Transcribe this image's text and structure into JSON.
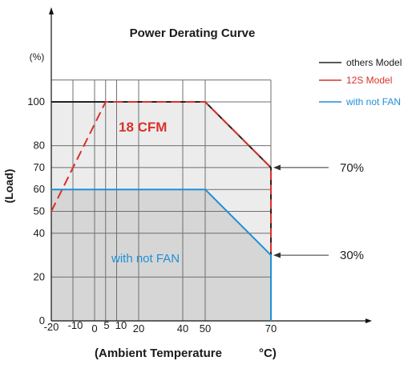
{
  "chart_data": {
    "type": "line",
    "title": "Power Derating Curve",
    "xlabel": "(Ambient Temperature",
    "xlabel_unit": "°C)",
    "ylabel": "(Load)",
    "y_unit_label": "(%)",
    "xlim": [
      -20,
      70
    ],
    "ylim": [
      0,
      110
    ],
    "x_ticks": [
      {
        "label": "-20",
        "value": -20
      },
      {
        "label": "-10",
        "value": -10
      },
      {
        "label": "0",
        "value": 0
      },
      {
        "label": "5",
        "value": 5
      },
      {
        "label": "10",
        "value": 10
      },
      {
        "label": "20",
        "value": 20
      },
      {
        "label": "40",
        "value": 40
      },
      {
        "label": "50",
        "value": 50
      },
      {
        "label": "70",
        "value": 70
      }
    ],
    "y_ticks": [
      {
        "label": "0",
        "value": 0
      },
      {
        "label": "20",
        "value": 20
      },
      {
        "label": "40",
        "value": 40
      },
      {
        "label": "50",
        "value": 50
      },
      {
        "label": "60",
        "value": 60
      },
      {
        "label": "70",
        "value": 70
      },
      {
        "label": "80",
        "value": 80
      },
      {
        "label": "100",
        "value": 100
      }
    ],
    "grid": true,
    "legend_position": "top-right",
    "series": [
      {
        "name": "others Model",
        "color": "#222222",
        "style": "solid",
        "x": [
          -20,
          50,
          70,
          70
        ],
        "y": [
          100,
          100,
          70,
          0
        ]
      },
      {
        "name": "12S Model",
        "color": "#d9322a",
        "style": "dashed",
        "x": [
          -20,
          5,
          50,
          70,
          70
        ],
        "y": [
          50,
          100,
          100,
          70,
          0
        ]
      },
      {
        "name": "with not FAN",
        "color": "#1e90d6",
        "style": "solid",
        "x": [
          -20,
          50,
          70,
          70
        ],
        "y": [
          60,
          60,
          30,
          0
        ]
      }
    ],
    "annotations": [
      {
        "id": "cfm",
        "text": "18 CFM",
        "x": 10,
        "y": 87,
        "color": "#d9322a"
      },
      {
        "id": "nofan",
        "text": "with not FAN",
        "x": 16,
        "y": 27,
        "color": "#1e90d6"
      },
      {
        "id": "pct70",
        "text": "70%",
        "x": 70,
        "y": 70,
        "color": "#222222"
      },
      {
        "id": "pct30",
        "text": "30%",
        "x": 70,
        "y": 30,
        "color": "#222222"
      }
    ]
  }
}
